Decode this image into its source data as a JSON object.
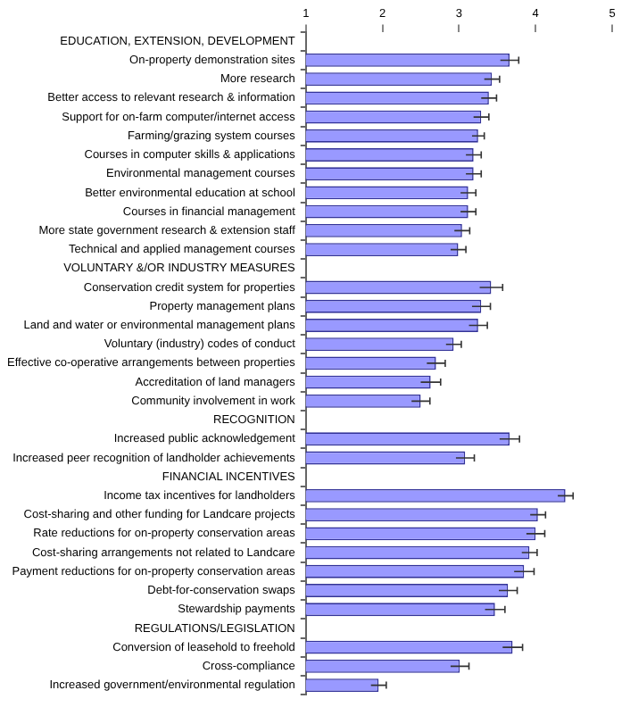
{
  "chart_data": {
    "type": "bar",
    "orientation": "horizontal",
    "categories": [
      "EDUCATION, EXTENSION, DEVELOPMENT",
      "On-property demonstration sites",
      "More research",
      "Better access to relevant research & information",
      "Support for on-farm computer/internet access",
      "Farming/grazing system courses",
      "Courses in computer skills & applications",
      "Environmental management courses",
      "Better environmental education at school",
      "Courses in financial management",
      "More state government research & extension staff",
      "Technical and applied management courses",
      "VOLUNTARY &/OR INDUSTRY MEASURES",
      "Conservation credit system for properties",
      "Property management plans",
      "Land and water or environmental management plans",
      "Voluntary (industry) codes of conduct",
      "Effective co-operative arrangements between properties",
      "Accreditation of land managers",
      "Community involvement in work",
      "RECOGNITION",
      "Increased public acknowledgement",
      "Increased peer recognition of landholder achievements",
      "FINANCIAL INCENTIVES",
      "Income tax incentives for landholders",
      "Cost-sharing and other funding for Landcare projects",
      "Rate reductions for on-property conservation areas",
      "Cost-sharing arrangements not related to Landcare",
      "Payment reductions for on-property conservation areas",
      "Debt-for-conservation swaps",
      "Stewardship payments",
      "REGULATIONS/LEGISLATION",
      "Conversion of leasehold to freehold",
      "Cross-compliance",
      "Increased government/environmental regulation"
    ],
    "values": [
      null,
      3.66,
      3.43,
      3.39,
      3.29,
      3.25,
      3.19,
      3.19,
      3.12,
      3.12,
      3.04,
      2.99,
      null,
      3.42,
      3.29,
      3.25,
      2.93,
      2.7,
      2.63,
      2.5,
      null,
      3.66,
      3.08,
      null,
      4.39,
      4.03,
      4.0,
      3.92,
      3.85,
      3.64,
      3.47,
      null,
      3.7,
      3.01,
      1.95
    ],
    "errors": [
      null,
      0.12,
      0.1,
      0.1,
      0.1,
      0.08,
      0.1,
      0.1,
      0.1,
      0.1,
      0.1,
      0.1,
      null,
      0.15,
      0.12,
      0.12,
      0.1,
      0.12,
      0.13,
      0.12,
      null,
      0.13,
      0.12,
      null,
      0.1,
      0.1,
      0.12,
      0.1,
      0.13,
      0.12,
      0.13,
      null,
      0.13,
      0.12,
      0.1
    ],
    "color": "#9999ff",
    "xlim": [
      1,
      5
    ],
    "xticks": [
      1,
      2,
      3,
      4,
      5
    ],
    "grid": false,
    "legend": false
  }
}
